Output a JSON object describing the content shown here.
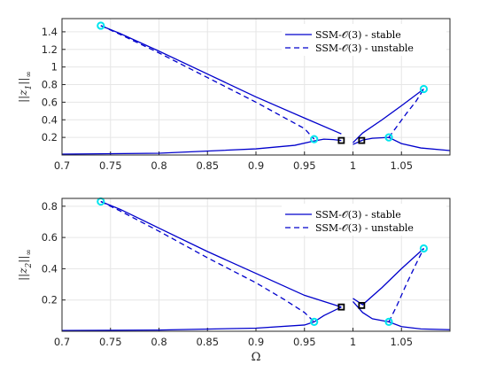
{
  "chart_data": [
    {
      "type": "line",
      "ylabel": "||z1||∞",
      "xlim": [
        0.7,
        1.1
      ],
      "ylim": [
        0.0,
        1.55
      ],
      "xticks": [
        "0.7",
        "0.75",
        "0.8",
        "0.85",
        "0.9",
        "0.95",
        "1",
        "1.05"
      ],
      "yticks": [
        "0.2",
        "0.4",
        "0.6",
        "0.8",
        "1",
        "1.2",
        "1.4"
      ],
      "grid": true,
      "legend_position": "top-right",
      "legend": [
        {
          "label": "SSM-𝒪(3) - stable",
          "style": "solid"
        },
        {
          "label": "SSM-𝒪(3) - unstable",
          "style": "dashed"
        }
      ],
      "series": [
        {
          "style": "solid",
          "x": [
            0.74,
            0.76,
            0.8,
            0.85,
            0.9,
            0.95,
            0.988
          ],
          "y": [
            1.47,
            1.38,
            1.18,
            0.92,
            0.66,
            0.42,
            0.24
          ]
        },
        {
          "style": "dashed",
          "x": [
            0.74,
            0.76,
            0.8,
            0.85,
            0.9,
            0.93,
            0.95,
            0.96
          ],
          "y": [
            1.47,
            1.37,
            1.16,
            0.88,
            0.6,
            0.42,
            0.3,
            0.18
          ]
        },
        {
          "style": "solid",
          "x": [
            0.7,
            0.8,
            0.9,
            0.94,
            0.96,
            0.97,
            0.98,
            0.988
          ],
          "y": [
            0.01,
            0.02,
            0.07,
            0.11,
            0.16,
            0.18,
            0.175,
            0.165
          ]
        },
        {
          "style": "solid",
          "x": [
            1.0,
            1.01,
            1.03,
            1.05,
            1.073
          ],
          "y": [
            0.14,
            0.25,
            0.4,
            0.56,
            0.75
          ]
        },
        {
          "style": "dashed",
          "x": [
            1.037,
            1.045,
            1.055,
            1.065,
            1.073
          ],
          "y": [
            0.2,
            0.32,
            0.47,
            0.61,
            0.75
          ]
        },
        {
          "style": "solid",
          "x": [
            1.0,
            1.01,
            1.02,
            1.037,
            1.05,
            1.07,
            1.1
          ],
          "y": [
            0.12,
            0.17,
            0.19,
            0.2,
            0.13,
            0.08,
            0.05
          ]
        }
      ],
      "markers": [
        {
          "kind": "cyan-circle",
          "x": 0.74,
          "y": 1.47
        },
        {
          "kind": "cyan-circle",
          "x": 0.96,
          "y": 0.18
        },
        {
          "kind": "cyan-circle",
          "x": 1.037,
          "y": 0.2
        },
        {
          "kind": "cyan-circle",
          "x": 1.073,
          "y": 0.75
        },
        {
          "kind": "black-square",
          "x": 0.988,
          "y": 0.165
        },
        {
          "kind": "black-square",
          "x": 1.009,
          "y": 0.165
        }
      ]
    },
    {
      "type": "line",
      "ylabel": "||z2||∞",
      "xlabel": "Ω",
      "xlim": [
        0.7,
        1.1
      ],
      "ylim": [
        0.0,
        0.85
      ],
      "xticks": [
        "0.7",
        "0.75",
        "0.8",
        "0.85",
        "0.9",
        "0.95",
        "1",
        "1.05"
      ],
      "yticks": [
        "0.2",
        "0.4",
        "0.6",
        "0.8"
      ],
      "grid": true,
      "legend_position": "top-right",
      "legend": [
        {
          "label": "SSM-𝒪(3) - stable",
          "style": "solid"
        },
        {
          "label": "SSM-𝒪(3) - unstable",
          "style": "dashed"
        }
      ],
      "series": [
        {
          "style": "solid",
          "x": [
            0.74,
            0.76,
            0.8,
            0.85,
            0.9,
            0.95,
            0.988
          ],
          "y": [
            0.83,
            0.78,
            0.66,
            0.51,
            0.37,
            0.23,
            0.155
          ]
        },
        {
          "style": "dashed",
          "x": [
            0.74,
            0.76,
            0.8,
            0.85,
            0.9,
            0.93,
            0.95,
            0.96
          ],
          "y": [
            0.83,
            0.77,
            0.64,
            0.47,
            0.31,
            0.2,
            0.12,
            0.06
          ]
        },
        {
          "style": "solid",
          "x": [
            0.7,
            0.8,
            0.9,
            0.95,
            0.96,
            0.97,
            0.988
          ],
          "y": [
            0.005,
            0.008,
            0.02,
            0.04,
            0.06,
            0.1,
            0.155
          ]
        },
        {
          "style": "solid",
          "x": [
            1.0,
            1.01,
            1.03,
            1.05,
            1.073
          ],
          "y": [
            0.21,
            0.17,
            0.28,
            0.4,
            0.53
          ]
        },
        {
          "style": "dashed",
          "x": [
            1.037,
            1.045,
            1.055,
            1.065,
            1.073
          ],
          "y": [
            0.06,
            0.16,
            0.3,
            0.43,
            0.53
          ]
        },
        {
          "style": "solid",
          "x": [
            1.0,
            1.01,
            1.02,
            1.037,
            1.05,
            1.07,
            1.1
          ],
          "y": [
            0.19,
            0.12,
            0.08,
            0.06,
            0.03,
            0.015,
            0.01
          ]
        }
      ],
      "markers": [
        {
          "kind": "cyan-circle",
          "x": 0.74,
          "y": 0.83
        },
        {
          "kind": "cyan-circle",
          "x": 0.96,
          "y": 0.06
        },
        {
          "kind": "cyan-circle",
          "x": 1.037,
          "y": 0.06
        },
        {
          "kind": "cyan-circle",
          "x": 1.073,
          "y": 0.53
        },
        {
          "kind": "black-square",
          "x": 0.988,
          "y": 0.155
        },
        {
          "kind": "black-square",
          "x": 1.009,
          "y": 0.165
        }
      ]
    }
  ],
  "colors": {
    "curve": "#0000cc",
    "cyan_marker": "#00e5ee",
    "square_marker": "#000000",
    "grid": "#e6e6e6"
  }
}
